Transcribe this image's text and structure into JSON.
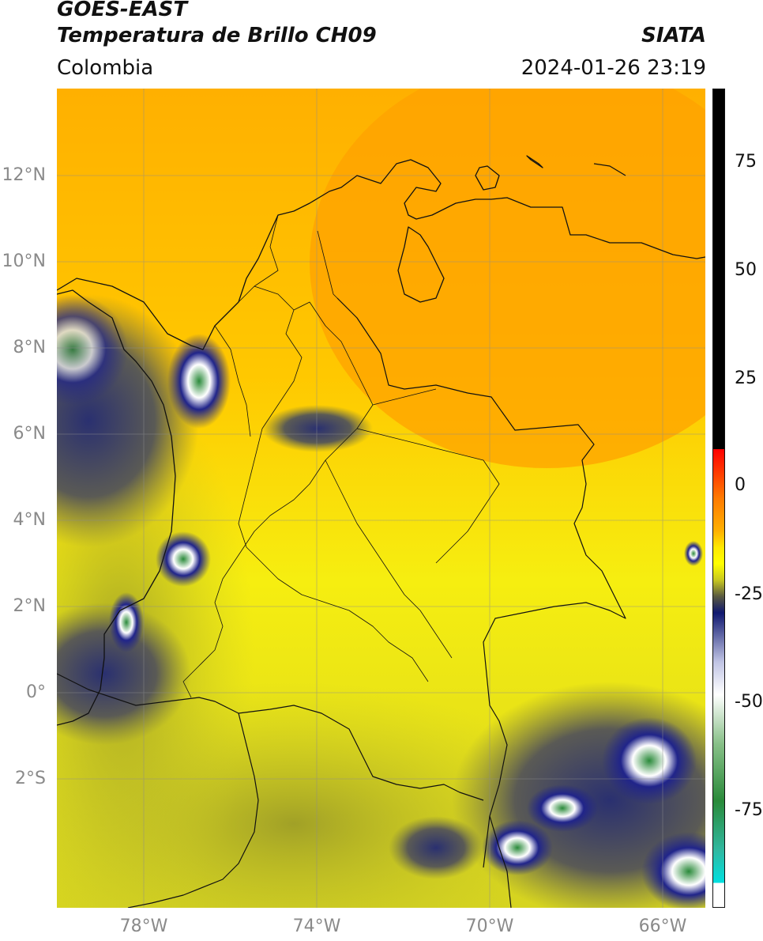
{
  "header": {
    "satellite": "GOES-EAST",
    "product": "Temperatura de Brillo CH09",
    "region": "Colombia",
    "agency": "SIATA",
    "datetime": "2024-01-26 23:19"
  },
  "map": {
    "lon_range": [
      -80,
      -65
    ],
    "lat_range": [
      -5,
      14
    ],
    "lat_ticks": [
      "12°N",
      "10°N",
      "8°N",
      "6°N",
      "4°N",
      "2°N",
      "0°",
      "2°S"
    ],
    "lon_ticks": [
      "78°W",
      "74°W",
      "70°W",
      "66°W"
    ],
    "gridlines": true
  },
  "colorbar": {
    "ticks": [
      "75",
      "50",
      "25",
      "0",
      "-25",
      "-50",
      "-75"
    ],
    "range": [
      -95,
      90
    ],
    "colors": {
      "warm": "#000000",
      "hot": "#ff0000",
      "orange": "#ff9f00",
      "yellow": "#ffff00",
      "olive": "#9a9a20",
      "navy": "#141a7a",
      "white": "#ffffff",
      "green": "#2a8a3a",
      "cyan": "#00d8d8"
    }
  }
}
